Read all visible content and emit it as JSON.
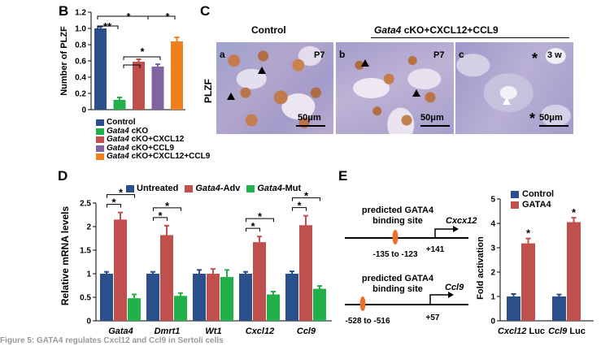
{
  "panel_b": {
    "letter": "B",
    "ylabel": "Number of PLZF",
    "legend": [
      {
        "text": "Control",
        "color": "#2a4f8a"
      },
      {
        "text_italic": "Gata4",
        "text": " cKO",
        "color": "#22b04a"
      },
      {
        "text_italic": "Gata4",
        "text": " cKO+CXCL12",
        "color": "#c0504d"
      },
      {
        "text_italic": "Gata4",
        "text": " cKO+CCL9",
        "color": "#8064a2"
      },
      {
        "text_italic": "Gata4",
        "text": " cKO+CXCL12+CCL9",
        "color": "#f07f1e"
      }
    ],
    "significance": [
      "**",
      "*",
      "*",
      "*"
    ]
  },
  "panel_c": {
    "letter": "C",
    "ylabel": "PLZF",
    "header_control": "Control",
    "header_treated_italic": "Gata4",
    "header_treated": " cKO+CXCL12+CCL9",
    "images": [
      {
        "letter": "a",
        "age": "P7",
        "scale": "50μm"
      },
      {
        "letter": "b",
        "age": "P7",
        "scale": "50μm"
      },
      {
        "letter": "c",
        "age": "3 w",
        "scale": "50μm"
      }
    ]
  },
  "panel_d": {
    "letter": "D",
    "ylabel": "Relative mRNA levels",
    "legend": [
      {
        "text": "Untreated",
        "color": "#2a4f8a"
      },
      {
        "text_italic": "Gata4",
        "text": "-Adv",
        "color": "#c0504d"
      },
      {
        "text_italic": "Gata4",
        "text": "-Mut",
        "color": "#22b04a"
      }
    ],
    "significance": "*"
  },
  "panel_e": {
    "letter": "E",
    "constructs": [
      {
        "site_line1": "predicted GATA4",
        "site_line2": "binding site",
        "gene": "Cxcx12",
        "range": "-135 to -123",
        "tss": "+141"
      },
      {
        "site_line1": "predicted GATA4",
        "site_line2": "binding site",
        "gene": "Ccl9",
        "range": "-528 to -516",
        "tss": "+57"
      }
    ],
    "ylabel": "Fold activation",
    "legend": [
      {
        "text": "Control",
        "color": "#2a4f8a"
      },
      {
        "text": "GATA4",
        "color": "#c0504d"
      }
    ],
    "significance": "*"
  },
  "caption": "Figure 5: GATA4 regulates Cxcl12 and Ccl9 in Sertoli cells",
  "chart_data": [
    {
      "type": "bar",
      "panel": "B",
      "ylabel": "Number of PLZF",
      "categories": [
        "Control",
        "Gata4 cKO",
        "Gata4 cKO+CXCL12",
        "Gata4 cKO+CCL9",
        "Gata4 cKO+CXCL12+CCL9"
      ],
      "values": [
        1.0,
        0.12,
        0.59,
        0.53,
        0.84
      ],
      "errors": [
        0.02,
        0.03,
        0.03,
        0.03,
        0.05
      ],
      "colors": [
        "#2a4f8a",
        "#22b04a",
        "#c0504d",
        "#8064a2",
        "#f07f1e"
      ],
      "yticks": [
        "0",
        "0.2",
        "0.4",
        "0.6",
        "0.8",
        "1.0",
        "1.2"
      ],
      "ylim": [
        0,
        1.2
      ]
    },
    {
      "type": "bar",
      "panel": "D",
      "ylabel": "Relative mRNA levels",
      "categories": [
        "Gata4",
        "Dmrt1",
        "Wt1",
        "Cxcl12",
        "Ccl9"
      ],
      "series": [
        {
          "name": "Untreated",
          "values": [
            1.0,
            1.0,
            1.0,
            1.0,
            1.0
          ],
          "errors": [
            0.04,
            0.04,
            0.08,
            0.04,
            0.05
          ],
          "color": "#2a4f8a"
        },
        {
          "name": "Gata4-Adv",
          "values": [
            2.15,
            1.82,
            1.0,
            1.67,
            2.03
          ],
          "errors": [
            0.15,
            0.2,
            0.1,
            0.12,
            0.2
          ],
          "color": "#c0504d"
        },
        {
          "name": "Gata4-Mut",
          "values": [
            0.48,
            0.53,
            0.93,
            0.56,
            0.68
          ],
          "errors": [
            0.08,
            0.06,
            0.15,
            0.06,
            0.06
          ],
          "color": "#22b04a"
        }
      ],
      "yticks": [
        "0",
        "0.5",
        "1",
        "1.5",
        "2",
        "2.5"
      ],
      "ylim": [
        0,
        2.5
      ]
    },
    {
      "type": "bar",
      "panel": "E",
      "ylabel": "Fold activation",
      "categories": [
        "Cxcl12 Luc",
        "Ccl9 Luc"
      ],
      "category_parts": [
        {
          "italic": "Cxcl12",
          "plain": " Luc"
        },
        {
          "italic": "Ccl9",
          "plain": " Luc"
        }
      ],
      "series": [
        {
          "name": "Control",
          "values": [
            1.0,
            1.0
          ],
          "errors": [
            0.1,
            0.08
          ],
          "color": "#2a4f8a"
        },
        {
          "name": "GATA4",
          "values": [
            3.18,
            4.05
          ],
          "errors": [
            0.2,
            0.18
          ],
          "color": "#c0504d"
        }
      ],
      "yticks": [
        "0",
        "1",
        "2",
        "3",
        "4",
        "5"
      ],
      "ylim": [
        0,
        5
      ]
    }
  ]
}
